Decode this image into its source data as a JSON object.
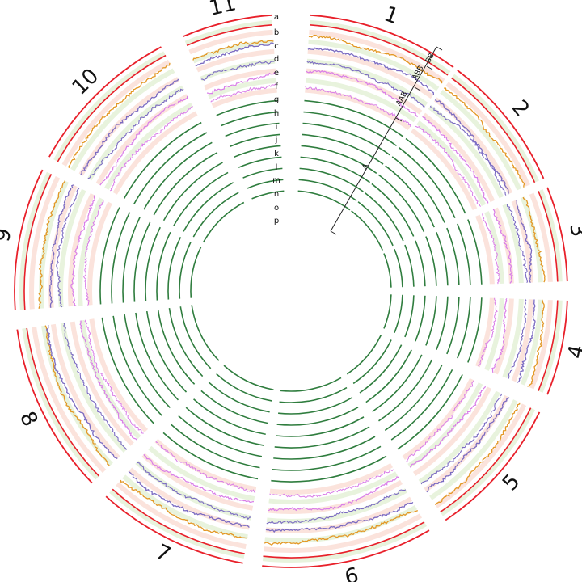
{
  "chromosomes": [
    "1",
    "2",
    "3",
    "4",
    "5",
    "6",
    "7",
    "8",
    "9",
    "10",
    "11"
  ],
  "track_letters": [
    "a",
    "b",
    "c",
    "d",
    "e",
    "f",
    "g",
    "h",
    "i",
    "j",
    "k",
    "l",
    "m",
    "n",
    "o",
    "p"
  ],
  "ploidy_scale": [
    "A",
    "AAB",
    "ABB",
    "BB"
  ],
  "colors": {
    "outer_ring": "#e8202a",
    "track_c": "#e39826",
    "track_d_e": "#7b6bc2",
    "track_f_g": "#d97ee8",
    "tracks_h_to_p": "#2f7d3e",
    "band_pink": "#fbe3dc",
    "band_green": "#e8f3dd",
    "axis": "#222222"
  }
}
